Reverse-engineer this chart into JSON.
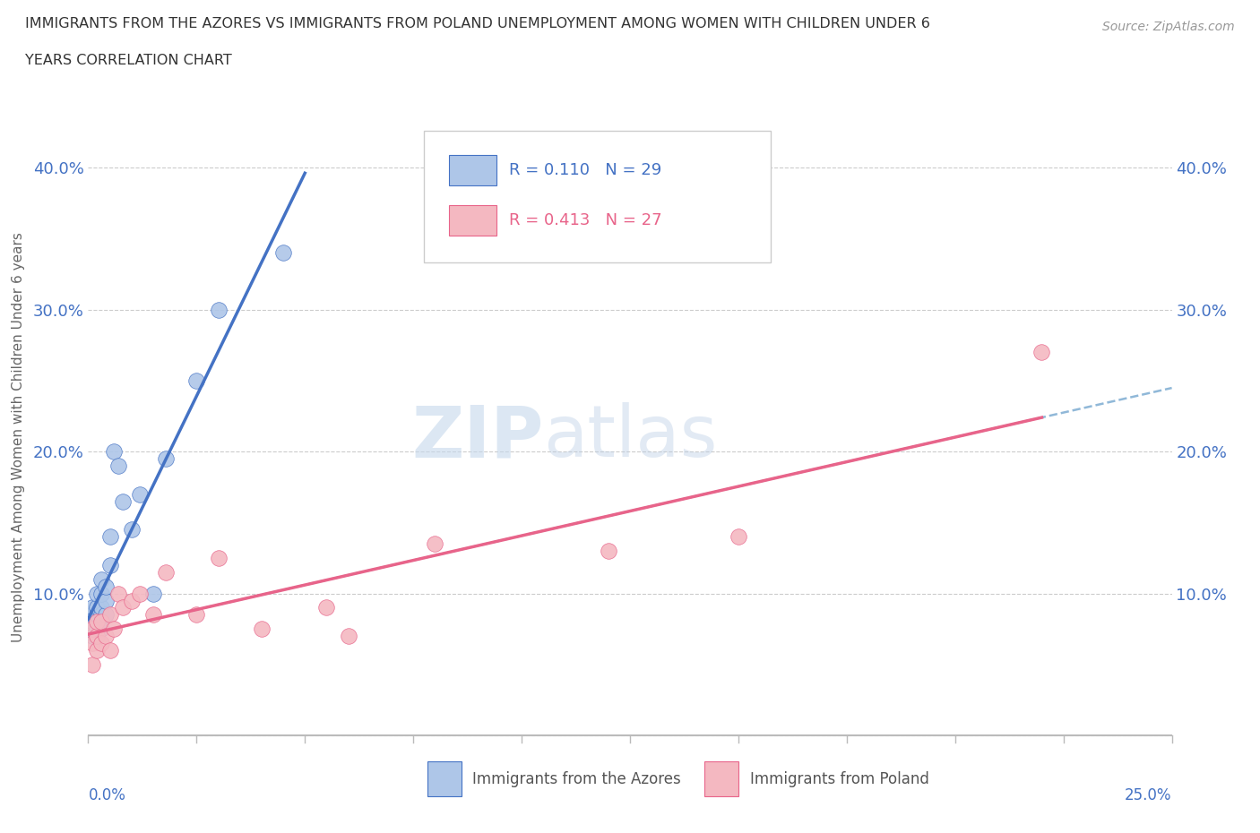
{
  "title_line1": "IMMIGRANTS FROM THE AZORES VS IMMIGRANTS FROM POLAND UNEMPLOYMENT AMONG WOMEN WITH CHILDREN UNDER 6",
  "title_line2": "YEARS CORRELATION CHART",
  "source": "Source: ZipAtlas.com",
  "ylabel": "Unemployment Among Women with Children Under 6 years",
  "xlim": [
    0,
    0.25
  ],
  "ylim": [
    -0.01,
    0.43
  ],
  "yticks": [
    0.0,
    0.1,
    0.2,
    0.3,
    0.4
  ],
  "ytick_labels": [
    "",
    "10.0%",
    "20.0%",
    "30.0%",
    "40.0%"
  ],
  "xtick_labels_left": "0.0%",
  "xtick_labels_right": "25.0%",
  "watermark_part1": "ZIP",
  "watermark_part2": "atlas",
  "legend_r1": "R = 0.110",
  "legend_n1": "N = 29",
  "legend_r2": "R = 0.413",
  "legend_n2": "N = 27",
  "series1_label": "Immigrants from the Azores",
  "series2_label": "Immigrants from Poland",
  "color1_fill": "#aec6e8",
  "color1_edge": "#4472c4",
  "color2_fill": "#f4b8c1",
  "color2_edge": "#e8648a",
  "trend1_color": "#4472c4",
  "trend2_color": "#e8648a",
  "azores_x": [
    0.001,
    0.001,
    0.001,
    0.001,
    0.002,
    0.002,
    0.002,
    0.002,
    0.002,
    0.003,
    0.003,
    0.003,
    0.003,
    0.003,
    0.004,
    0.004,
    0.004,
    0.005,
    0.005,
    0.006,
    0.007,
    0.008,
    0.01,
    0.012,
    0.015,
    0.018,
    0.025,
    0.03,
    0.045
  ],
  "azores_y": [
    0.07,
    0.08,
    0.085,
    0.09,
    0.07,
    0.075,
    0.085,
    0.09,
    0.1,
    0.075,
    0.085,
    0.09,
    0.1,
    0.11,
    0.085,
    0.095,
    0.105,
    0.12,
    0.14,
    0.2,
    0.19,
    0.165,
    0.145,
    0.17,
    0.1,
    0.195,
    0.25,
    0.3,
    0.34
  ],
  "poland_x": [
    0.001,
    0.001,
    0.001,
    0.002,
    0.002,
    0.002,
    0.003,
    0.003,
    0.004,
    0.005,
    0.005,
    0.006,
    0.007,
    0.008,
    0.01,
    0.012,
    0.015,
    0.018,
    0.025,
    0.03,
    0.04,
    0.055,
    0.06,
    0.08,
    0.12,
    0.15,
    0.22
  ],
  "poland_y": [
    0.05,
    0.065,
    0.075,
    0.06,
    0.07,
    0.08,
    0.065,
    0.08,
    0.07,
    0.06,
    0.085,
    0.075,
    0.1,
    0.09,
    0.095,
    0.1,
    0.085,
    0.115,
    0.085,
    0.125,
    0.075,
    0.09,
    0.07,
    0.135,
    0.13,
    0.14,
    0.27
  ]
}
